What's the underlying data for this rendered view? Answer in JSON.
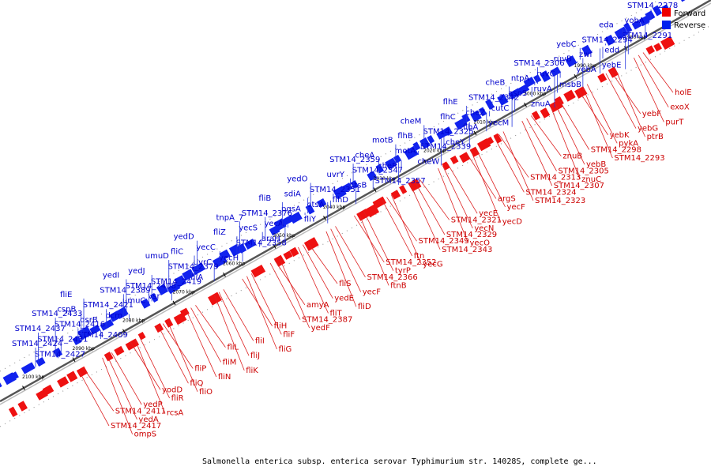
{
  "caption": "Salmonella enterica subsp. enterica serovar Typhimurium str. 14028S, complete ge...",
  "legend": [
    {
      "label": "Forward",
      "color": "#ee0000"
    },
    {
      "label": "Reverse",
      "color": "#0022ee"
    }
  ],
  "scale_ticks": [
    "1980 kbp",
    "1990 kbp",
    "2000 kbp",
    "2010 kbp",
    "2020 kbp",
    "2030 kbp",
    "2040 kbp",
    "2050 kbp",
    "2060 kbp",
    "2070 kbp",
    "2080 kbp",
    "2090 kbp",
    "2100 kbp"
  ],
  "reverse_labels": [
    "STM14_2278",
    "yobA",
    "STM14_2291",
    "edd",
    "yebE",
    "eda",
    "STM14_2294",
    "zwf",
    "yebA",
    "msbB",
    "yebC",
    "ruvB",
    "ruvC",
    "ruvA",
    "znuA",
    "STM14_2306",
    "ntpA",
    "aspS",
    "cutC",
    "yecM",
    "cheB",
    "STM14_2342",
    "cheZ",
    "flhA",
    "cheY",
    "flhE",
    "flhC",
    "STM14_2325",
    "STM14_2339",
    "cheW",
    "cheM",
    "flhB",
    "motA",
    "cheR",
    "STM14_2357",
    "motB",
    "cheA",
    "STM14_2347",
    "otsB",
    "flhD",
    "STM14_2359",
    "uvrY",
    "STM14_2351",
    "otsA",
    "fliY",
    "yedO",
    "sdiA",
    "pgsA",
    "yecA",
    "araH",
    "fliB",
    "STM14_2376",
    "yecS",
    "STM14_2358",
    "yecH",
    "tnpA_7",
    "fliZ",
    "yecC",
    "uvrC",
    "fliA",
    "yedD",
    "fliC",
    "STM14_2379",
    "STM14_2419",
    "vsr",
    "umuD",
    "yedJ",
    "STM14_2408",
    "umuC",
    "dcm",
    "yedI",
    "STM14_2389",
    "STM14_2421",
    "dsrB",
    "STM14_2409",
    "fliE",
    "cspB",
    "STM14_2416",
    "STM14_2431",
    "STM14_2427",
    "STM14_2433",
    "STM14_2437",
    "STM14_2424"
  ],
  "forward_labels": [
    "holE",
    "exoX",
    "purT",
    "ptrB",
    "yebF",
    "yebG",
    "pykA",
    "STM14_2293",
    "yebK",
    "STM14_2298",
    "yebB",
    "znuC",
    "znuB",
    "STM14_2305",
    "STM14_2307",
    "STM14_2323",
    "STM14_2313",
    "STM14_2324",
    "yecF",
    "yecD",
    "argS",
    "yecE",
    "yecN",
    "yecO",
    "STM14_2321",
    "STM14_2329",
    "STM14_2343",
    "yecG",
    "STM14_2349",
    "ftn",
    "tyrP",
    "ftnB",
    "STM14_2352",
    "STM14_2366",
    "yecF",
    "fliD",
    "fliS",
    "yedE",
    "fliT",
    "yedF",
    "amyA",
    "STM14_2387",
    "fliF",
    "fliG",
    "fliH",
    "fliI",
    "fliJ",
    "fliK",
    "fliL",
    "fliM",
    "fliN",
    "fliO",
    "fliP",
    "fliQ",
    "fliR",
    "rcsA",
    "yodD",
    "yedP",
    "yedA",
    "ompS",
    "STM14_2411",
    "STM14_2417"
  ]
}
